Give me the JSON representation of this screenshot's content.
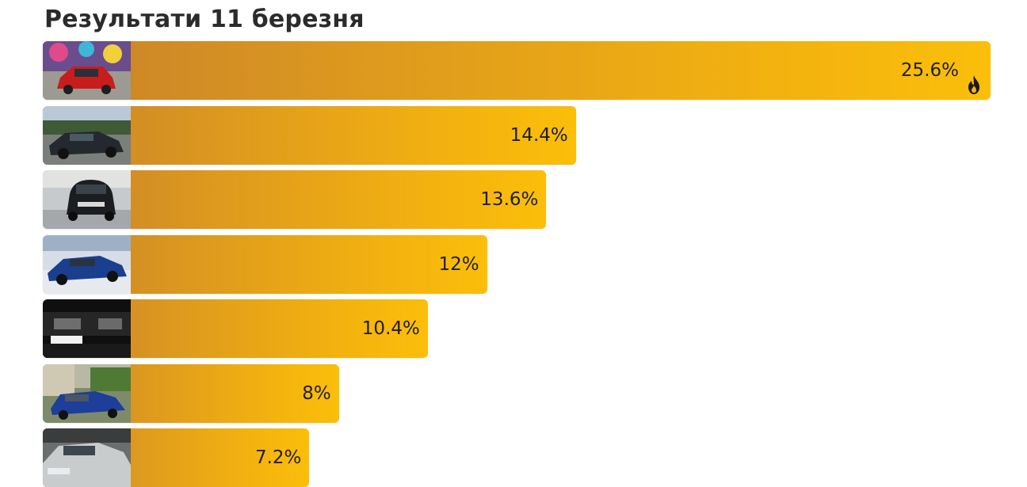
{
  "title": "Результати 11 березня",
  "colors": {
    "bar_start": "#c9822a",
    "bar_end": "#fbbe0a",
    "text": "#1f1f1f"
  },
  "chart_data": {
    "type": "bar",
    "orientation": "horizontal",
    "title": "Результати 11 березня",
    "unit": "%",
    "categories": [
      "car-1",
      "car-2",
      "car-3",
      "car-4",
      "car-5",
      "car-6",
      "car-7"
    ],
    "values": [
      25.6,
      14.4,
      13.6,
      12,
      10.4,
      8,
      7.2
    ],
    "labels": [
      "25.6%",
      "14.4%",
      "13.6%",
      "12%",
      "10.4%",
      "8%",
      "7.2%"
    ],
    "top_marker_icon": "fire-icon",
    "thumbnails": [
      "red-hatchback-photo",
      "dark-sedan-photo",
      "black-microcar-photo",
      "blue-sedan-photo",
      "dark-car-headlight-photo",
      "blue-minivan-photo",
      "silver-sedan-photo"
    ],
    "grid": false,
    "legend": "none"
  }
}
